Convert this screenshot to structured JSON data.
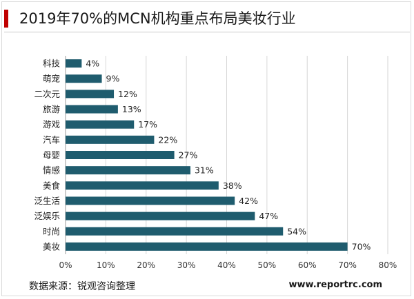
{
  "title": "2019年70%的MCN机构重点布局美妆行业",
  "source": "数据来源：锐观咨询整理",
  "website": "www.reportrc.com",
  "colors": {
    "accent": "#c00000",
    "bar": "#1f5c6e",
    "grid": "#d6d6d6"
  },
  "chart_data": {
    "type": "bar",
    "orientation": "horizontal",
    "categories": [
      "科技",
      "萌宠",
      "二次元",
      "旅游",
      "游戏",
      "汽车",
      "母婴",
      "情感",
      "美食",
      "泛生活",
      "泛娱乐",
      "时尚",
      "美妆"
    ],
    "values": [
      4,
      9,
      12,
      13,
      17,
      22,
      27,
      31,
      38,
      42,
      47,
      54,
      70
    ],
    "data_labels": [
      "4%",
      "9%",
      "12%",
      "13%",
      "17%",
      "22%",
      "27%",
      "31%",
      "38%",
      "42%",
      "47%",
      "54%",
      "70%"
    ],
    "x_ticks": [
      "0%",
      "10%",
      "20%",
      "30%",
      "40%",
      "50%",
      "60%",
      "70%",
      "80%"
    ],
    "xlim": [
      0,
      80
    ],
    "grid": true,
    "legend": false
  }
}
